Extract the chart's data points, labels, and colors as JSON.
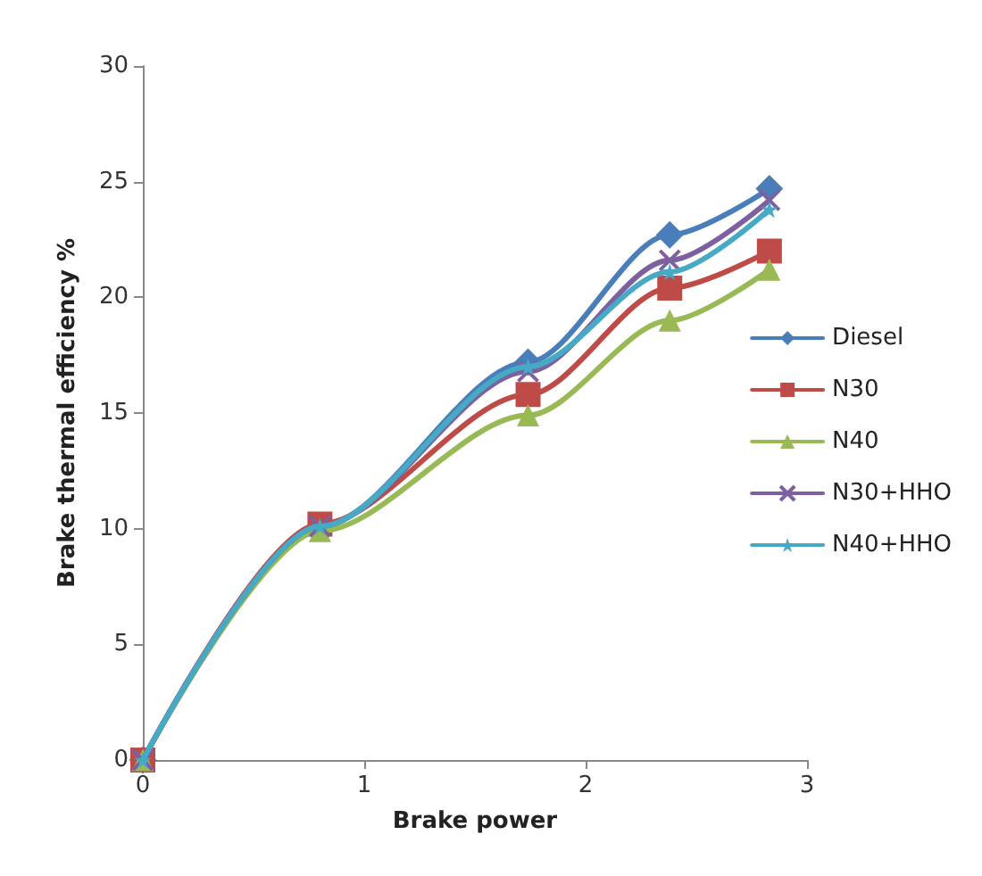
{
  "chart_data": {
    "type": "line",
    "xlabel": "Brake power",
    "ylabel": "Brake thermal efficiency %",
    "xlim": [
      0,
      3
    ],
    "xticks": [
      0,
      1,
      2,
      3
    ],
    "ylim": [
      0,
      30
    ],
    "yticks": [
      0,
      5,
      10,
      15,
      20,
      25,
      30
    ],
    "grid": false,
    "legend": "right",
    "line_style": "solid",
    "x": [
      0,
      0.8,
      1.74,
      2.38,
      2.83
    ],
    "series": [
      {
        "name": "Diesel",
        "color": "#4a7ebb",
        "marker": "diamond",
        "values": [
          0,
          10.1,
          17.2,
          22.7,
          24.7
        ]
      },
      {
        "name": "N30",
        "color": "#be4b48",
        "marker": "square",
        "values": [
          0,
          10.2,
          15.8,
          20.4,
          22.0
        ]
      },
      {
        "name": "N40",
        "color": "#98b954",
        "marker": "triangle",
        "values": [
          0,
          9.9,
          14.9,
          19.0,
          21.2
        ]
      },
      {
        "name": "N30+HHO",
        "color": "#7d60a0",
        "marker": "cross",
        "values": [
          0,
          10.1,
          16.8,
          21.6,
          24.2
        ]
      },
      {
        "name": "N40+HHO",
        "color": "#46aac5",
        "marker": "star",
        "values": [
          0,
          10.1,
          17.0,
          21.1,
          23.8
        ]
      }
    ]
  }
}
